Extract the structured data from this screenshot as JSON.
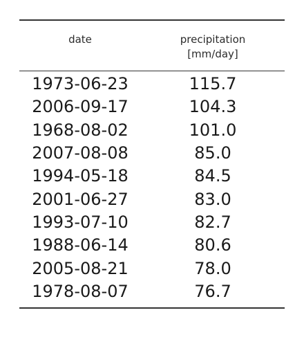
{
  "chart_data": {
    "type": "table",
    "columns": [
      "date",
      "precipitation",
      "[mm/day]"
    ],
    "header": {
      "date": "date",
      "precipitation_label": "precipitation",
      "precipitation_unit": "[mm/day]"
    },
    "rows": [
      {
        "date": "1973-06-23",
        "value": "115.7"
      },
      {
        "date": "2006-09-17",
        "value": "104.3"
      },
      {
        "date": "1968-08-02",
        "value": "101.0"
      },
      {
        "date": "2007-08-08",
        "value": "85.0"
      },
      {
        "date": "1994-05-18",
        "value": "84.5"
      },
      {
        "date": "2001-06-27",
        "value": "83.0"
      },
      {
        "date": "1993-07-10",
        "value": "82.7"
      },
      {
        "date": "1988-06-14",
        "value": "80.6"
      },
      {
        "date": "2005-08-21",
        "value": "78.0"
      },
      {
        "date": "1978-08-07",
        "value": "76.7"
      }
    ]
  }
}
